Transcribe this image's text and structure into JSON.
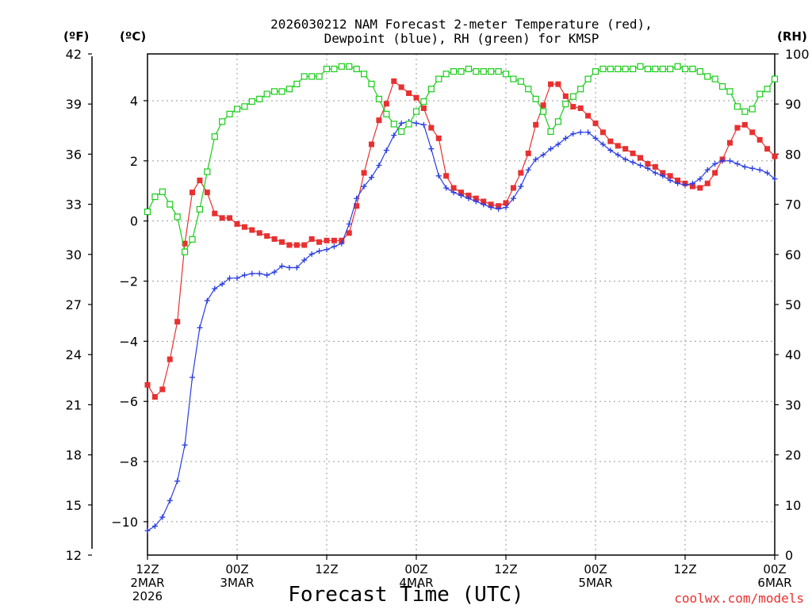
{
  "chart_data": {
    "type": "line",
    "title_line1": "2026030212 NAM Forecast 2-meter Temperature (red),",
    "title_line2": "Dewpoint (blue), RH (green) for KMSP",
    "units": {
      "fahrenheit": "(ºF)",
      "celsius": "(ºC)",
      "rh": "(RH)"
    },
    "xlabel": "Forecast Time (UTC)",
    "watermark": "coolwx.com/models",
    "xlim_hours": [
      0,
      84
    ],
    "c_range": [
      -11.111,
      5.556
    ],
    "rh_range": [
      0,
      100
    ],
    "fahrenheit_ticks": [
      "12",
      "15",
      "18",
      "21",
      "24",
      "27",
      "30",
      "33",
      "36",
      "39",
      "42"
    ],
    "celsius_ticks": [
      "−10",
      "−8",
      "−6",
      "−4",
      "−2",
      "0",
      "2",
      "4"
    ],
    "rh_ticks": [
      "0",
      "10",
      "20",
      "30",
      "40",
      "50",
      "60",
      "70",
      "80",
      "90",
      "100"
    ],
    "x_ticks": [
      {
        "hour": 0,
        "line1": "12Z",
        "line2": "2MAR",
        "line3": "2026"
      },
      {
        "hour": 12,
        "line1": "00Z",
        "line2": "3MAR",
        "line3": ""
      },
      {
        "hour": 24,
        "line1": "12Z",
        "line2": "",
        "line3": ""
      },
      {
        "hour": 36,
        "line1": "00Z",
        "line2": "4MAR",
        "line3": ""
      },
      {
        "hour": 48,
        "line1": "12Z",
        "line2": "",
        "line3": ""
      },
      {
        "hour": 60,
        "line1": "00Z",
        "line2": "5MAR",
        "line3": ""
      },
      {
        "hour": 72,
        "line1": "12Z",
        "line2": "",
        "line3": ""
      },
      {
        "hour": 84,
        "line1": "00Z",
        "line2": "6MAR",
        "line3": ""
      }
    ],
    "hours": [
      0,
      1,
      2,
      3,
      4,
      5,
      6,
      7,
      8,
      9,
      10,
      11,
      12,
      13,
      14,
      15,
      16,
      17,
      18,
      19,
      20,
      21,
      22,
      23,
      24,
      25,
      26,
      27,
      28,
      29,
      30,
      31,
      32,
      33,
      34,
      35,
      36,
      37,
      38,
      39,
      40,
      41,
      42,
      43,
      44,
      45,
      46,
      47,
      48,
      49,
      50,
      51,
      52,
      53,
      54,
      55,
      56,
      57,
      58,
      59,
      60,
      61,
      62,
      63,
      64,
      65,
      66,
      67,
      68,
      69,
      70,
      71,
      72,
      73,
      74,
      75,
      76,
      77,
      78,
      79,
      80,
      81,
      82,
      83,
      84
    ],
    "series": [
      {
        "name": "2-meter Temperature",
        "unit": "°C",
        "color": "#e83030",
        "marker": "filled-square",
        "values": [
          -5.45,
          -5.85,
          -5.6,
          -4.6,
          -3.35,
          -0.75,
          0.95,
          1.35,
          0.95,
          0.25,
          0.1,
          0.1,
          -0.1,
          -0.2,
          -0.3,
          -0.4,
          -0.5,
          -0.6,
          -0.7,
          -0.8,
          -0.8,
          -0.8,
          -0.6,
          -0.7,
          -0.65,
          -0.65,
          -0.65,
          -0.4,
          0.5,
          1.6,
          2.55,
          3.35,
          3.9,
          4.65,
          4.45,
          4.25,
          4.1,
          3.75,
          3.1,
          2.75,
          1.5,
          1.1,
          0.95,
          0.85,
          0.75,
          0.65,
          0.55,
          0.5,
          0.6,
          1.1,
          1.6,
          2.25,
          3.2,
          3.85,
          4.55,
          4.55,
          4.15,
          3.8,
          3.75,
          3.5,
          3.25,
          2.95,
          2.65,
          2.5,
          2.4,
          2.25,
          2.1,
          1.9,
          1.8,
          1.6,
          1.5,
          1.35,
          1.25,
          1.15,
          1.1,
          1.25,
          1.6,
          2.05,
          2.6,
          3.1,
          3.2,
          2.95,
          2.7,
          2.4,
          2.15
        ]
      },
      {
        "name": "Dewpoint",
        "unit": "°C",
        "color": "#2a3de0",
        "marker": "plus",
        "values": [
          -10.3,
          -10.15,
          -9.85,
          -9.3,
          -8.65,
          -7.45,
          -5.2,
          -3.55,
          -2.65,
          -2.25,
          -2.1,
          -1.9,
          -1.9,
          -1.8,
          -1.75,
          -1.75,
          -1.8,
          -1.7,
          -1.5,
          -1.55,
          -1.55,
          -1.3,
          -1.1,
          -1.0,
          -0.95,
          -0.85,
          -0.75,
          -0.1,
          0.75,
          1.15,
          1.45,
          1.85,
          2.35,
          2.85,
          3.25,
          3.3,
          3.25,
          3.2,
          2.4,
          1.5,
          1.1,
          0.95,
          0.85,
          0.75,
          0.65,
          0.55,
          0.45,
          0.4,
          0.45,
          0.75,
          1.15,
          1.7,
          2.05,
          2.2,
          2.4,
          2.55,
          2.75,
          2.9,
          2.95,
          2.95,
          2.75,
          2.55,
          2.35,
          2.2,
          2.05,
          1.95,
          1.85,
          1.75,
          1.6,
          1.5,
          1.35,
          1.25,
          1.2,
          1.25,
          1.4,
          1.7,
          1.9,
          2.0,
          2.0,
          1.9,
          1.8,
          1.75,
          1.7,
          1.6,
          1.4
        ]
      },
      {
        "name": "Relative Humidity",
        "unit": "%",
        "color": "#18cc18",
        "marker": "open-square",
        "values": [
          68.5,
          71.5,
          72.5,
          70,
          67.5,
          60.5,
          63,
          69,
          76.5,
          83.5,
          86.5,
          88,
          89,
          89.5,
          90.5,
          91,
          92,
          92.5,
          92.5,
          93,
          94,
          95.5,
          95.5,
          95.5,
          97,
          97,
          97.5,
          97.5,
          97,
          96,
          94,
          91,
          88,
          86,
          84.5,
          86,
          88.5,
          90.5,
          93,
          95,
          96,
          96.5,
          96.5,
          97,
          96.5,
          96.5,
          96.5,
          96.5,
          96,
          95,
          94.5,
          93,
          91,
          88.5,
          84.5,
          86.5,
          90,
          91.5,
          93,
          95,
          96.5,
          97,
          97,
          97,
          97,
          97,
          97.5,
          97,
          97,
          97,
          97,
          97.5,
          97,
          97,
          96.5,
          95.5,
          95,
          93.5,
          92.5,
          89.5,
          88.5,
          89,
          92,
          93,
          95
        ]
      }
    ]
  }
}
